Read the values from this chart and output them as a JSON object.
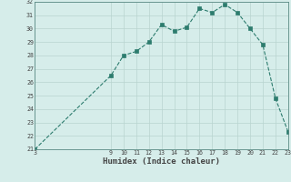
{
  "x": [
    3,
    9,
    10,
    11,
    12,
    13,
    14,
    15,
    16,
    17,
    18,
    19,
    20,
    21,
    22,
    23
  ],
  "y": [
    21.0,
    26.5,
    28.0,
    28.3,
    29.0,
    30.3,
    29.8,
    30.1,
    31.5,
    31.2,
    31.8,
    31.2,
    30.0,
    28.8,
    24.8,
    22.3
  ],
  "xlabel": "Humidex (Indice chaleur)",
  "ylim": [
    21,
    32
  ],
  "xlim": [
    3,
    23
  ],
  "yticks": [
    21,
    22,
    23,
    24,
    25,
    26,
    27,
    28,
    29,
    30,
    31,
    32
  ],
  "xticks": [
    3,
    9,
    10,
    11,
    12,
    13,
    14,
    15,
    16,
    17,
    18,
    19,
    20,
    21,
    22,
    23
  ],
  "line_color": "#2d7c6e",
  "marker_color": "#2d7c6e",
  "bg_color": "#d6edea",
  "grid_color": "#b8d4cf",
  "font_color": "#444444",
  "spine_color": "#5a8a84"
}
